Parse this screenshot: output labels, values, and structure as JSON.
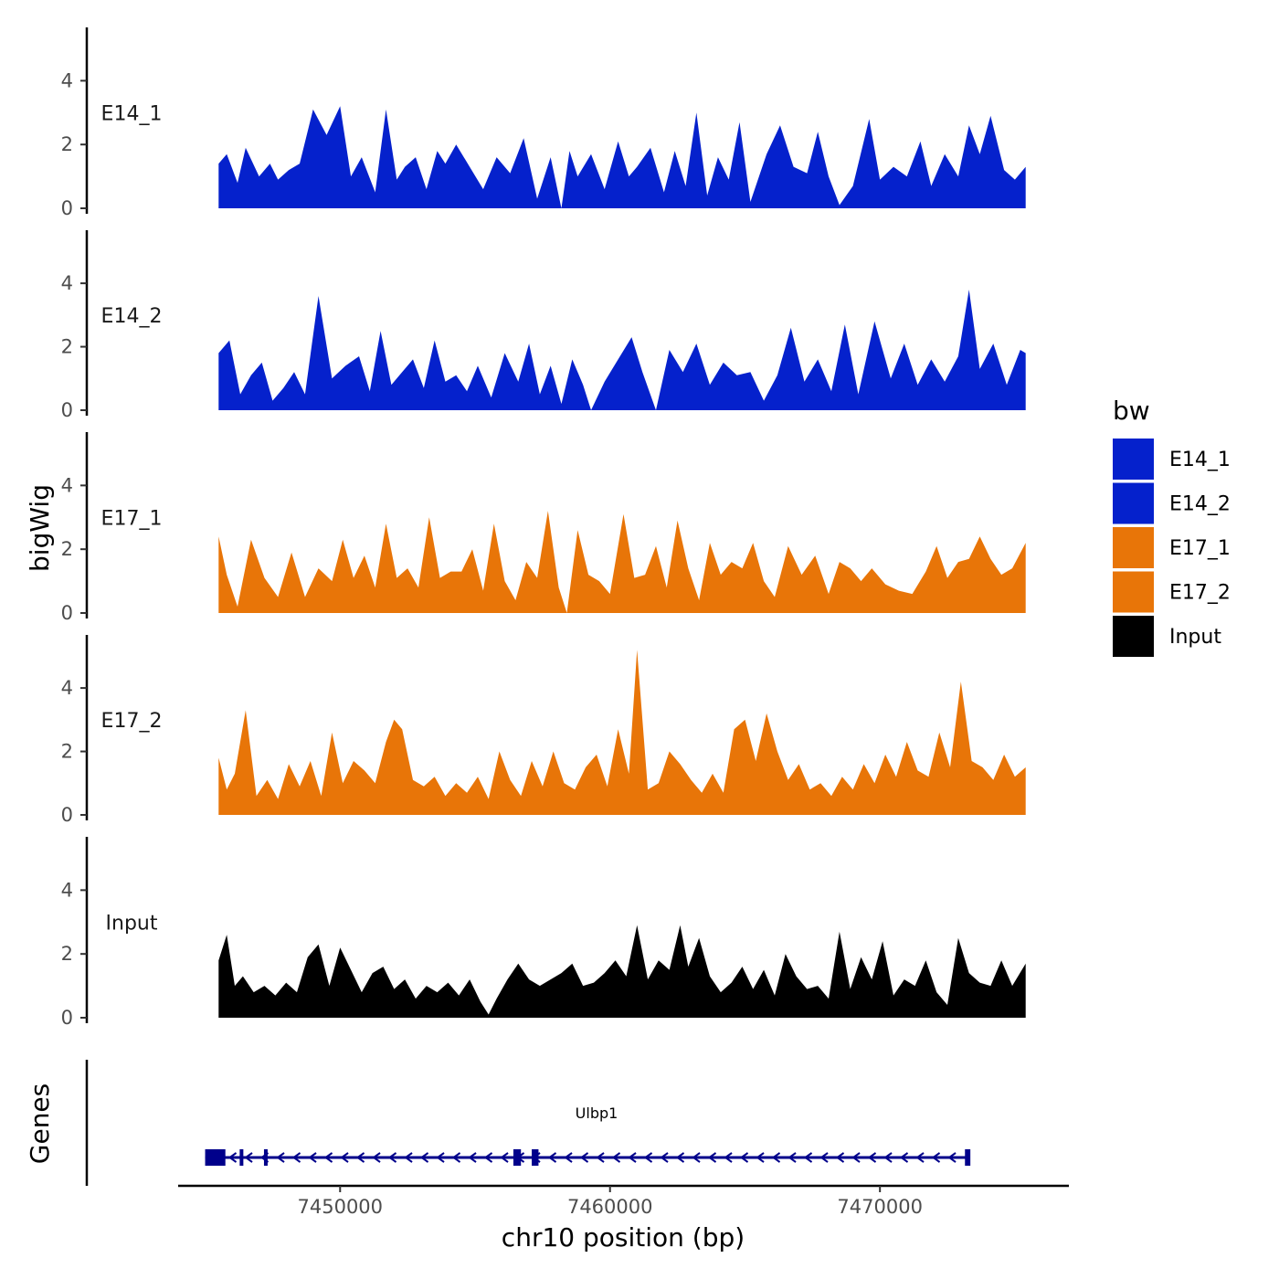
{
  "chart_data": {
    "type": "area",
    "ylabel": "bigWig",
    "gene_panel_label": "Genes",
    "xlabel": "chr10 position (bp)",
    "xlim": [
      7444000,
      7477000
    ],
    "x_ticks": [
      7450000,
      7460000,
      7470000
    ],
    "x_tick_labels": [
      "7450000",
      "7460000",
      "7470000"
    ],
    "ylim": [
      0,
      5.5
    ],
    "y_ticks": [
      0,
      2,
      4
    ],
    "y_tick_labels": [
      "0",
      "2",
      "4"
    ],
    "legend": {
      "title": "bw",
      "items": [
        {
          "label": "E14_1",
          "color": "#0521CC"
        },
        {
          "label": "E14_2",
          "color": "#0521CC"
        },
        {
          "label": "E17_1",
          "color": "#E87508"
        },
        {
          "label": "E17_2",
          "color": "#E87508"
        },
        {
          "label": "Input",
          "color": "#000000"
        }
      ]
    },
    "tracks": [
      {
        "name": "E14_1",
        "color": "#0521CC",
        "x": [
          7445500,
          7445800,
          7446200,
          7446500,
          7447000,
          7447400,
          7447700,
          7448100,
          7448500,
          7449000,
          7449500,
          7450000,
          7450400,
          7450800,
          7451300,
          7451700,
          7452100,
          7452400,
          7452800,
          7453200,
          7453600,
          7453900,
          7454300,
          7454800,
          7455300,
          7455800,
          7456300,
          7456800,
          7457300,
          7457800,
          7458200,
          7458500,
          7458800,
          7459300,
          7459800,
          7460300,
          7460700,
          7461000,
          7461500,
          7462000,
          7462400,
          7462800,
          7463200,
          7463600,
          7464000,
          7464400,
          7464800,
          7465200,
          7465800,
          7466300,
          7466800,
          7467300,
          7467700,
          7468100,
          7468500,
          7469000,
          7469600,
          7470000,
          7470500,
          7471000,
          7471500,
          7471900,
          7472400,
          7472900,
          7473300,
          7473700,
          7474100,
          7474600,
          7475000,
          7475400
        ],
        "y": [
          1.4,
          1.7,
          0.8,
          1.9,
          1.0,
          1.4,
          0.9,
          1.2,
          1.4,
          3.1,
          2.3,
          3.2,
          1.0,
          1.6,
          0.5,
          3.1,
          0.9,
          1.3,
          1.6,
          0.6,
          1.8,
          1.4,
          2.0,
          1.3,
          0.6,
          1.6,
          1.1,
          2.2,
          0.3,
          1.6,
          0.0,
          1.8,
          1.0,
          1.7,
          0.6,
          2.1,
          1.0,
          1.3,
          1.9,
          0.5,
          1.8,
          0.7,
          3.0,
          0.4,
          1.6,
          0.9,
          2.7,
          0.2,
          1.7,
          2.6,
          1.3,
          1.1,
          2.4,
          1.0,
          0.1,
          0.7,
          2.8,
          0.9,
          1.3,
          1.0,
          2.1,
          0.7,
          1.7,
          1.0,
          2.6,
          1.7,
          2.9,
          1.2,
          0.9,
          1.3
        ]
      },
      {
        "name": "E14_2",
        "color": "#0521CC",
        "x": [
          7445500,
          7445900,
          7446300,
          7446700,
          7447100,
          7447500,
          7447900,
          7448300,
          7448700,
          7449200,
          7449700,
          7450200,
          7450700,
          7451100,
          7451500,
          7451900,
          7452300,
          7452700,
          7453100,
          7453500,
          7453900,
          7454300,
          7454700,
          7455100,
          7455600,
          7456100,
          7456600,
          7457000,
          7457400,
          7457800,
          7458200,
          7458600,
          7459000,
          7459300,
          7459800,
          7460300,
          7460800,
          7461200,
          7461700,
          7462200,
          7462700,
          7463200,
          7463700,
          7464200,
          7464700,
          7465200,
          7465700,
          7466200,
          7466700,
          7467200,
          7467700,
          7468200,
          7468700,
          7469200,
          7469800,
          7470400,
          7470900,
          7471400,
          7471900,
          7472400,
          7472900,
          7473300,
          7473700,
          7474200,
          7474700,
          7475200,
          7475400
        ],
        "y": [
          1.8,
          2.2,
          0.5,
          1.1,
          1.5,
          0.3,
          0.7,
          1.2,
          0.5,
          3.6,
          1.0,
          1.4,
          1.7,
          0.6,
          2.5,
          0.8,
          1.2,
          1.6,
          0.7,
          2.2,
          0.9,
          1.1,
          0.6,
          1.4,
          0.4,
          1.8,
          0.9,
          2.1,
          0.5,
          1.4,
          0.2,
          1.6,
          0.8,
          0.0,
          0.9,
          1.6,
          2.3,
          1.2,
          0.0,
          1.9,
          1.2,
          2.1,
          0.8,
          1.5,
          1.1,
          1.2,
          0.3,
          1.1,
          2.6,
          0.9,
          1.6,
          0.6,
          2.7,
          0.5,
          2.8,
          1.0,
          2.1,
          0.8,
          1.6,
          0.9,
          1.7,
          3.8,
          1.3,
          2.1,
          0.8,
          1.9,
          1.8
        ]
      },
      {
        "name": "E17_1",
        "color": "#E87508",
        "x": [
          7445500,
          7445800,
          7446200,
          7446700,
          7447200,
          7447700,
          7448200,
          7448700,
          7449200,
          7449700,
          7450100,
          7450500,
          7450900,
          7451300,
          7451700,
          7452100,
          7452500,
          7452900,
          7453300,
          7453700,
          7454100,
          7454500,
          7454900,
          7455300,
          7455700,
          7456100,
          7456500,
          7456900,
          7457300,
          7457700,
          7458100,
          7458400,
          7458800,
          7459200,
          7459600,
          7460000,
          7460500,
          7460900,
          7461300,
          7461700,
          7462100,
          7462500,
          7462900,
          7463300,
          7463700,
          7464100,
          7464500,
          7464900,
          7465300,
          7465700,
          7466100,
          7466600,
          7467100,
          7467600,
          7468100,
          7468500,
          7468900,
          7469300,
          7469700,
          7470200,
          7470700,
          7471200,
          7471700,
          7472100,
          7472500,
          7472900,
          7473300,
          7473700,
          7474100,
          7474500,
          7474900,
          7475400
        ],
        "y": [
          2.4,
          1.2,
          0.2,
          2.3,
          1.1,
          0.5,
          1.9,
          0.5,
          1.4,
          1.0,
          2.3,
          1.1,
          1.8,
          0.8,
          2.8,
          1.1,
          1.4,
          0.8,
          3.0,
          1.1,
          1.3,
          1.3,
          2.0,
          0.7,
          2.8,
          1.0,
          0.4,
          1.6,
          1.1,
          3.2,
          0.8,
          0.0,
          2.6,
          1.2,
          1.0,
          0.6,
          3.1,
          1.1,
          1.2,
          2.1,
          0.8,
          2.9,
          1.4,
          0.4,
          2.2,
          1.2,
          1.6,
          1.4,
          2.2,
          1.0,
          0.5,
          2.1,
          1.2,
          1.8,
          0.6,
          1.6,
          1.4,
          1.0,
          1.4,
          0.9,
          0.7,
          0.6,
          1.3,
          2.1,
          1.1,
          1.6,
          1.7,
          2.4,
          1.7,
          1.2,
          1.4,
          2.2
        ]
      },
      {
        "name": "E17_2",
        "color": "#E87508",
        "x": [
          7445500,
          7445800,
          7446100,
          7446500,
          7446900,
          7447300,
          7447700,
          7448100,
          7448500,
          7448900,
          7449300,
          7449700,
          7450100,
          7450500,
          7450900,
          7451300,
          7451700,
          7452000,
          7452300,
          7452700,
          7453100,
          7453500,
          7453900,
          7454300,
          7454700,
          7455100,
          7455500,
          7455900,
          7456300,
          7456700,
          7457100,
          7457500,
          7457900,
          7458300,
          7458700,
          7459100,
          7459500,
          7459900,
          7460300,
          7460700,
          7461000,
          7461400,
          7461800,
          7462200,
          7462600,
          7463000,
          7463400,
          7463800,
          7464200,
          7464600,
          7465000,
          7465400,
          7465800,
          7466200,
          7466600,
          7467000,
          7467400,
          7467800,
          7468200,
          7468600,
          7469000,
          7469400,
          7469800,
          7470200,
          7470600,
          7471000,
          7471400,
          7471800,
          7472200,
          7472600,
          7473000,
          7473400,
          7473800,
          7474200,
          7474600,
          7475000,
          7475400
        ],
        "y": [
          1.8,
          0.8,
          1.3,
          3.3,
          0.6,
          1.1,
          0.5,
          1.6,
          0.9,
          1.7,
          0.6,
          2.6,
          1.0,
          1.7,
          1.4,
          1.0,
          2.3,
          3.0,
          2.7,
          1.1,
          0.9,
          1.2,
          0.6,
          1.0,
          0.7,
          1.2,
          0.5,
          2.0,
          1.1,
          0.6,
          1.7,
          0.9,
          2.0,
          1.0,
          0.8,
          1.5,
          1.9,
          0.9,
          2.7,
          1.3,
          5.2,
          0.8,
          1.0,
          2.0,
          1.6,
          1.1,
          0.7,
          1.3,
          0.7,
          2.7,
          3.0,
          1.7,
          3.2,
          2.0,
          1.1,
          1.6,
          0.8,
          1.0,
          0.6,
          1.2,
          0.8,
          1.6,
          1.0,
          1.9,
          1.2,
          2.3,
          1.4,
          1.2,
          2.6,
          1.5,
          4.2,
          1.7,
          1.5,
          1.1,
          1.9,
          1.2,
          1.5
        ]
      },
      {
        "name": "Input",
        "color": "#000000",
        "x": [
          7445500,
          7445800,
          7446100,
          7446400,
          7446800,
          7447200,
          7447600,
          7448000,
          7448400,
          7448800,
          7449200,
          7449600,
          7450000,
          7450400,
          7450800,
          7451200,
          7451600,
          7452000,
          7452400,
          7452800,
          7453200,
          7453600,
          7454000,
          7454400,
          7454800,
          7455200,
          7455500,
          7455800,
          7456200,
          7456600,
          7457000,
          7457400,
          7457800,
          7458200,
          7458600,
          7459000,
          7459400,
          7459800,
          7460200,
          7460600,
          7461000,
          7461400,
          7461800,
          7462200,
          7462600,
          7462900,
          7463300,
          7463700,
          7464100,
          7464500,
          7464900,
          7465300,
          7465700,
          7466100,
          7466500,
          7466900,
          7467300,
          7467700,
          7468100,
          7468500,
          7468900,
          7469300,
          7469700,
          7470100,
          7470500,
          7470900,
          7471300,
          7471700,
          7472100,
          7472500,
          7472900,
          7473300,
          7473700,
          7474100,
          7474500,
          7474900,
          7475400
        ],
        "y": [
          1.8,
          2.6,
          1.0,
          1.3,
          0.8,
          1.0,
          0.7,
          1.1,
          0.8,
          1.9,
          2.3,
          1.0,
          2.2,
          1.5,
          0.8,
          1.4,
          1.6,
          0.9,
          1.2,
          0.6,
          1.0,
          0.8,
          1.1,
          0.7,
          1.2,
          0.5,
          0.1,
          0.6,
          1.2,
          1.7,
          1.2,
          1.0,
          1.2,
          1.4,
          1.7,
          1.0,
          1.1,
          1.4,
          1.8,
          1.3,
          2.9,
          1.2,
          1.8,
          1.5,
          2.9,
          1.6,
          2.5,
          1.3,
          0.8,
          1.1,
          1.6,
          0.9,
          1.5,
          0.7,
          2.0,
          1.3,
          0.9,
          1.0,
          0.6,
          2.7,
          0.9,
          1.9,
          1.2,
          2.4,
          0.7,
          1.2,
          1.0,
          1.8,
          0.8,
          0.4,
          2.5,
          1.4,
          1.1,
          1.0,
          1.8,
          1.0,
          1.7
        ]
      }
    ],
    "genes": [
      {
        "name": "Ulbp1",
        "start": 7445000,
        "end": 7473300,
        "strand": "-",
        "color": "#00008B",
        "exons": [
          [
            7445000,
            7445750
          ],
          [
            7446280,
            7446400
          ],
          [
            7447180,
            7447280
          ],
          [
            7456420,
            7456700
          ],
          [
            7457100,
            7457350
          ],
          [
            7473150,
            7473350
          ]
        ]
      }
    ]
  }
}
